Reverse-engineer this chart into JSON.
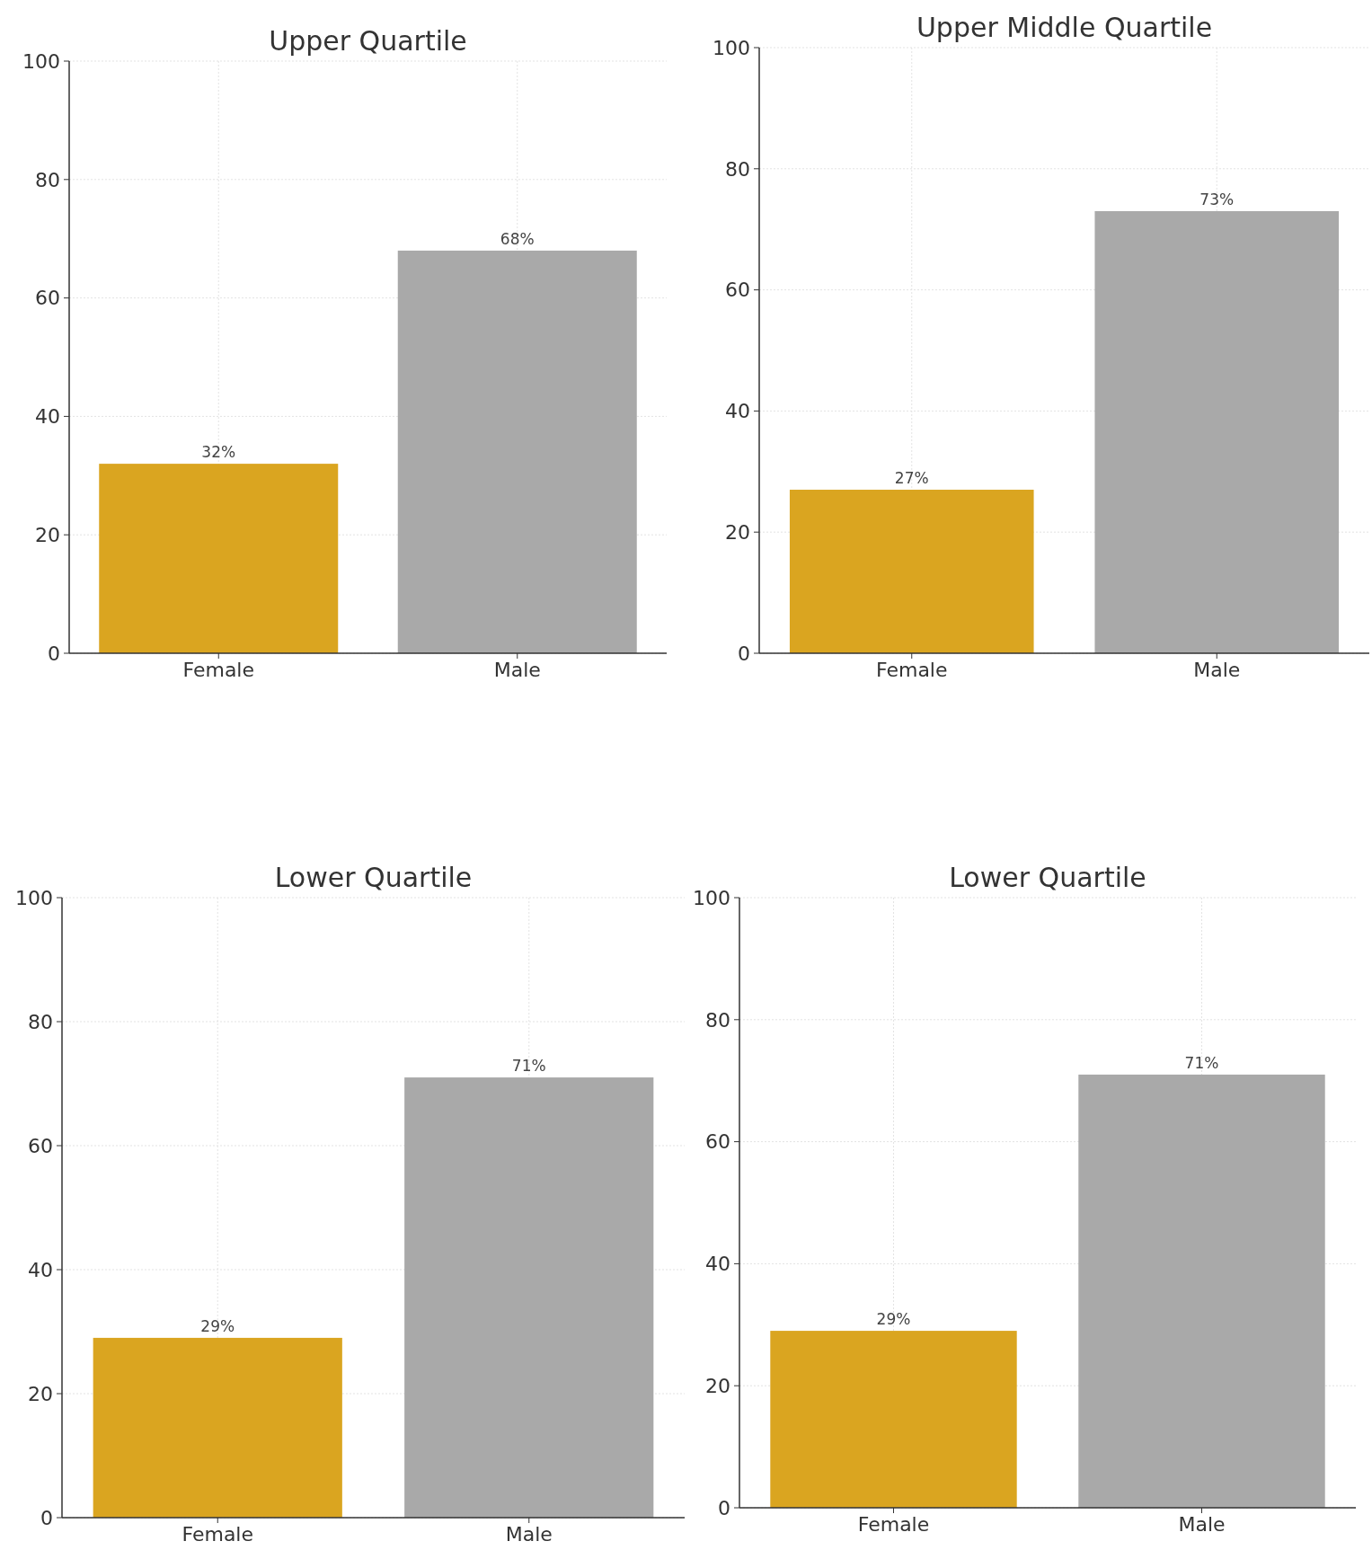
{
  "chart_data": [
    {
      "type": "bar",
      "title": "Upper Quartile",
      "categories": [
        "Female",
        "Male"
      ],
      "values": [
        32,
        68
      ],
      "colors": [
        "#daa520",
        "#a9a9a9"
      ],
      "value_labels": [
        "32%",
        "68%"
      ],
      "ylim": [
        0,
        100
      ],
      "yticks": [
        0,
        20,
        40,
        60,
        80,
        100
      ],
      "grid": true
    },
    {
      "type": "bar",
      "title": "Upper Middle Quartile",
      "categories": [
        "Female",
        "Male"
      ],
      "values": [
        27,
        73
      ],
      "colors": [
        "#daa520",
        "#a9a9a9"
      ],
      "value_labels": [
        "27%",
        "73%"
      ],
      "ylim": [
        0,
        100
      ],
      "yticks": [
        0,
        20,
        40,
        60,
        80,
        100
      ],
      "grid": true
    },
    {
      "type": "bar",
      "title": "Lower Quartile",
      "categories": [
        "Female",
        "Male"
      ],
      "values": [
        29,
        71
      ],
      "colors": [
        "#daa520",
        "#a9a9a9"
      ],
      "value_labels": [
        "29%",
        "71%"
      ],
      "ylim": [
        0,
        100
      ],
      "yticks": [
        0,
        20,
        40,
        60,
        80,
        100
      ],
      "grid": true
    },
    {
      "type": "bar",
      "title": "Lower Quartile",
      "categories": [
        "Female",
        "Male"
      ],
      "values": [
        29,
        71
      ],
      "colors": [
        "#daa520",
        "#a9a9a9"
      ],
      "value_labels": [
        "29%",
        "71%"
      ],
      "ylim": [
        0,
        100
      ],
      "yticks": [
        0,
        20,
        40,
        60,
        80,
        100
      ],
      "grid": true
    }
  ]
}
